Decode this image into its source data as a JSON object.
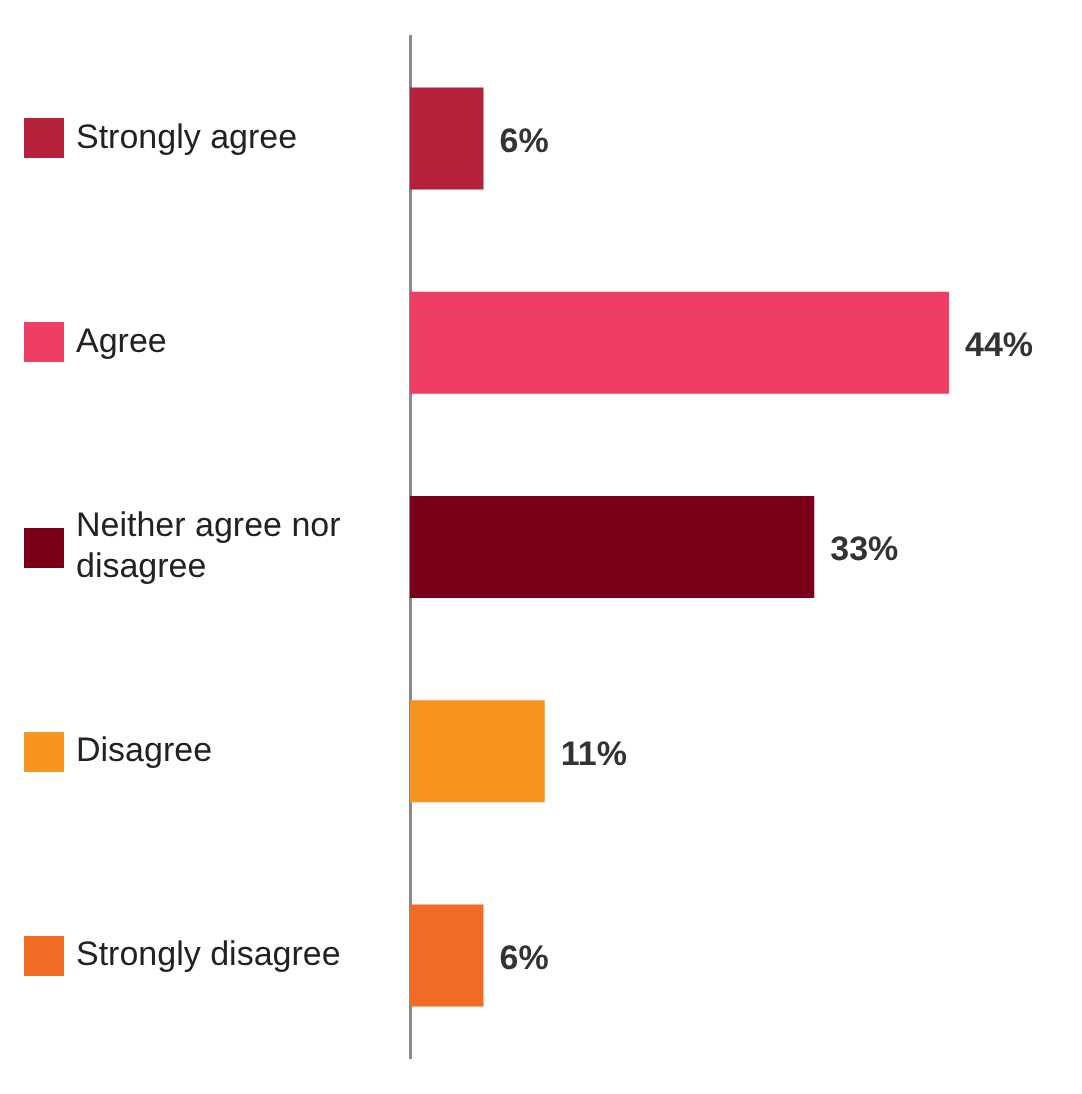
{
  "chart_data": {
    "type": "bar",
    "orientation": "horizontal",
    "categories": [
      "Strongly agree",
      "Agree",
      "Neither agree nor disagree",
      "Disagree",
      "Strongly disagree"
    ],
    "values": [
      6,
      44,
      33,
      11,
      6
    ],
    "value_labels": [
      "6%",
      "44%",
      "33%",
      "11%",
      "6%"
    ],
    "colors": [
      "#b5203a",
      "#f03d63",
      "#7a0019",
      "#f7941d",
      "#f26b25"
    ],
    "legend": false,
    "grid": false
  }
}
